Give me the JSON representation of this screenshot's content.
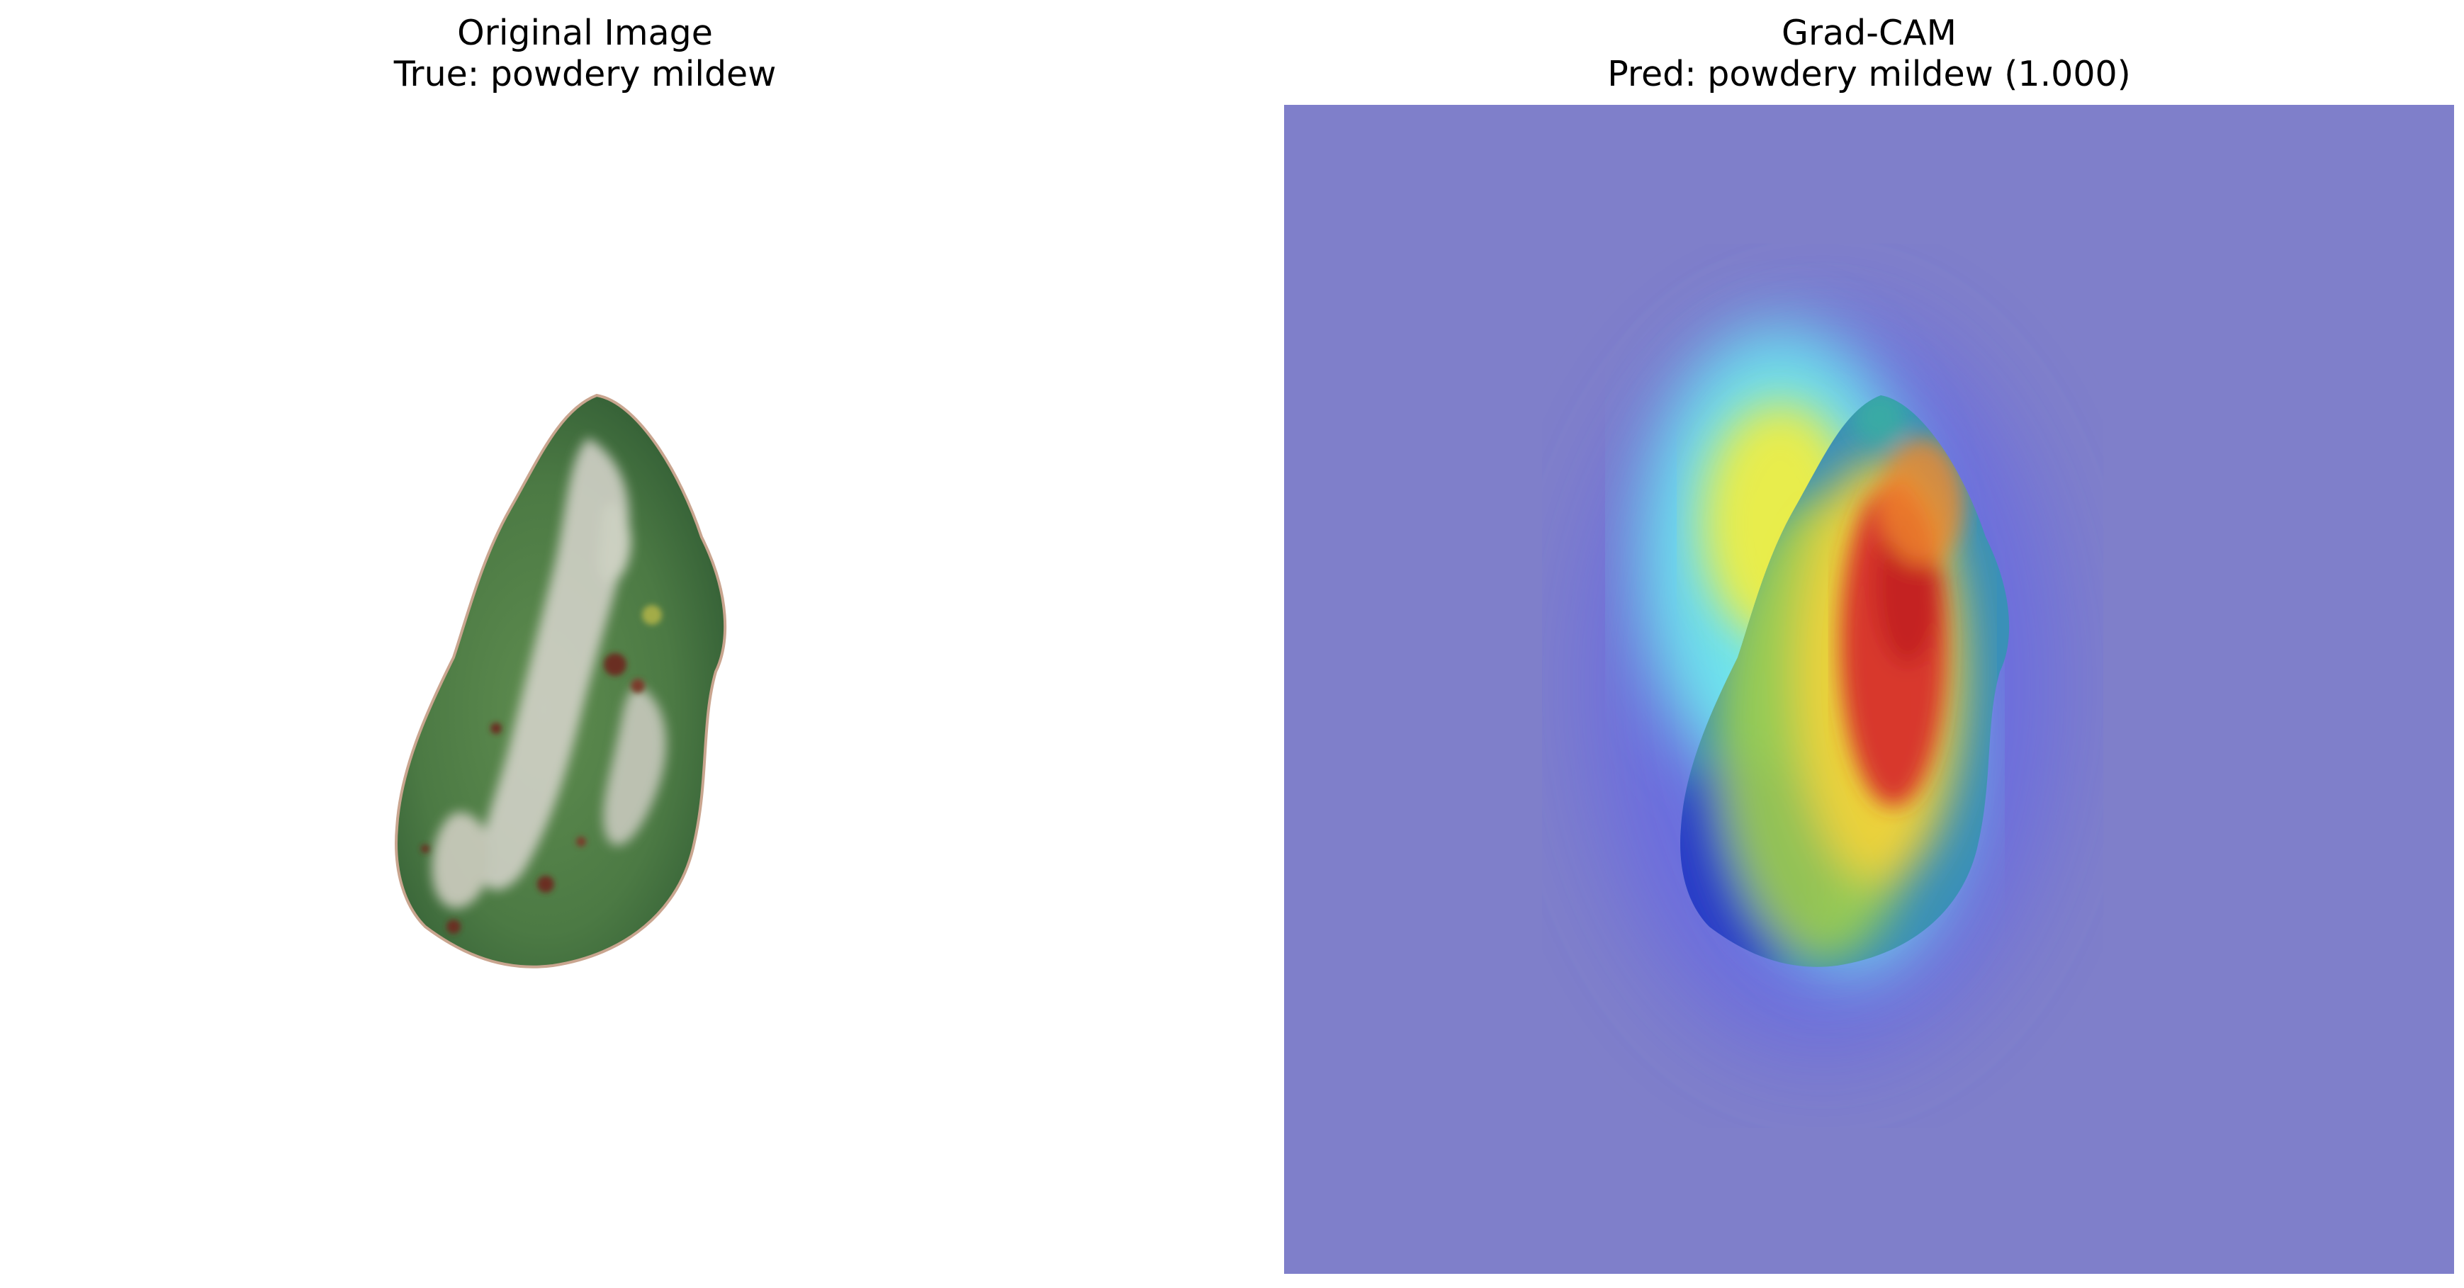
{
  "panels": [
    {
      "title_line1": "Original Image",
      "title_line2": "True: powdery mildew"
    },
    {
      "title_line1": "Grad-CAM",
      "title_line2": "Pred: powdery mildew (1.000)"
    }
  ],
  "colors": {
    "background": "#ffffff",
    "cam_base": "#7f7fca",
    "leaf_green": "#4f7f45",
    "leaf_dark": "#2f5a33",
    "mildew": "#d9d6cf",
    "spot": "#6b2e24",
    "heat_red": "#d7302b",
    "heat_yellow": "#f5ee3b",
    "heat_cyan": "#6ff2ee",
    "heat_blue": "#2a35c9"
  }
}
